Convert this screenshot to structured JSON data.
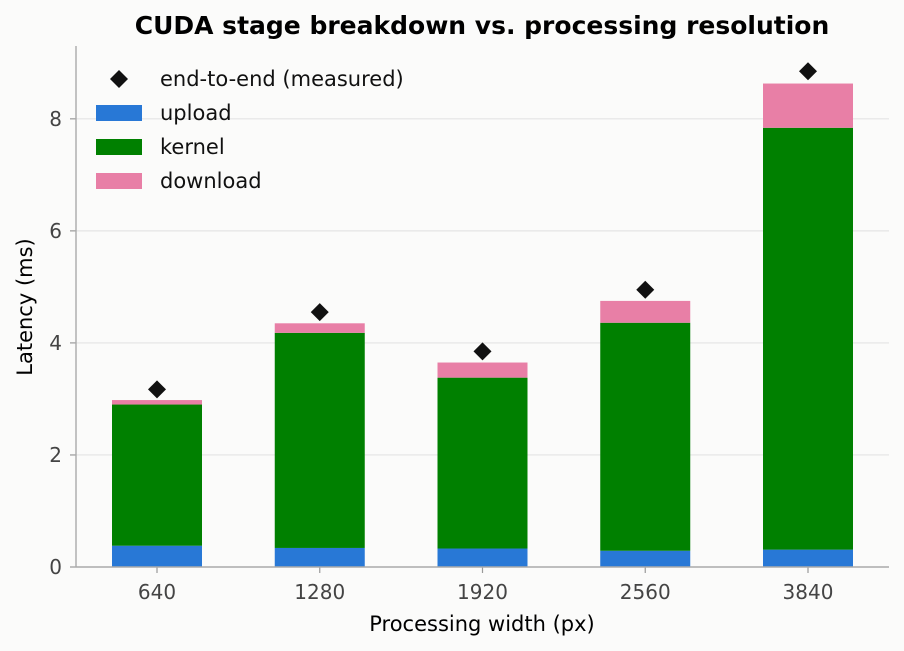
{
  "chart_data": {
    "type": "bar",
    "stacked": true,
    "title": "CUDA stage breakdown vs. processing resolution",
    "xlabel": "Processing width (px)",
    "ylabel": "Latency (ms)",
    "categories": [
      "640",
      "1280",
      "1920",
      "2560",
      "3840"
    ],
    "ylim": [
      0,
      9.3
    ],
    "yticks": [
      0,
      2,
      4,
      6,
      8
    ],
    "grid": "horizontal",
    "legend_position": "top-left",
    "series": [
      {
        "name": "upload",
        "color": "#2878d6",
        "values": [
          0.38,
          0.34,
          0.33,
          0.29,
          0.31
        ]
      },
      {
        "name": "kernel",
        "color": "#008000",
        "values": [
          2.52,
          3.84,
          3.05,
          4.07,
          7.53
        ]
      },
      {
        "name": "download",
        "color": "#e87fa6",
        "values": [
          0.08,
          0.17,
          0.27,
          0.39,
          0.79
        ]
      }
    ],
    "markers": {
      "name": "end-to-end (measured)",
      "shape": "diamond",
      "color": "#111111",
      "values": [
        3.17,
        4.55,
        3.85,
        4.95,
        8.85
      ]
    }
  }
}
